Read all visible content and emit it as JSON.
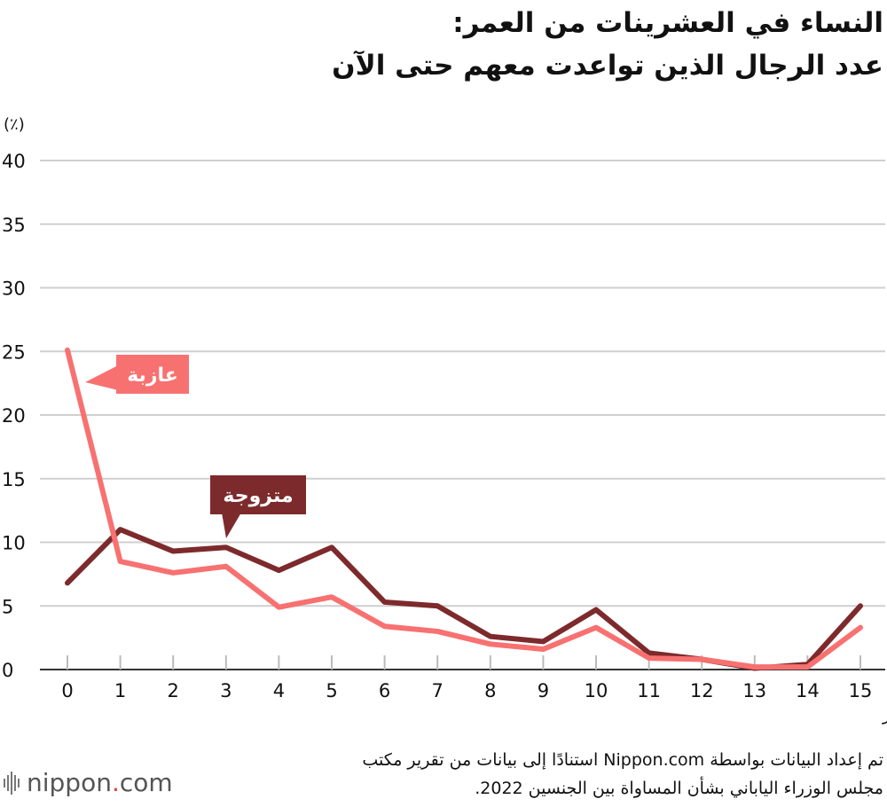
{
  "title": {
    "line1": "النساء في العشرينات من العمر:",
    "line2": "عدد الرجال الذين تواعدت معهم حتى الآن"
  },
  "footnote": {
    "line1": "تم إعداد البيانات بواسطة Nippon.com استنادًا إلى بيانات من تقرير مكتب",
    "line2": "مجلس الوزراء الياباني بشأن المساواة بين الجنسين 2022."
  },
  "logo": {
    "word": "nippon",
    "dot": ".",
    "suffix": "com"
  },
  "chart_data": {
    "type": "line",
    "unit_label": "(٪)",
    "x": [
      "0",
      "1",
      "2",
      "3",
      "4",
      "5",
      "6",
      "7",
      "8",
      "9",
      "10",
      "11",
      "12",
      "13",
      "14",
      "15"
    ],
    "x_last_note": "أو أكثر",
    "ylim": [
      0,
      40
    ],
    "yticks": [
      0,
      5,
      10,
      15,
      20,
      25,
      30,
      35,
      40
    ],
    "grid": true,
    "series": [
      {
        "name": "عازبة",
        "color": "#f87171",
        "values": [
          25.1,
          8.5,
          7.6,
          8.1,
          4.9,
          5.7,
          3.4,
          3.0,
          2.0,
          1.6,
          3.3,
          0.9,
          0.8,
          0.2,
          0.2,
          3.3
        ]
      },
      {
        "name": "متزوجة",
        "color": "#7d2a2c",
        "values": [
          6.8,
          11.0,
          9.3,
          9.6,
          7.8,
          9.6,
          5.3,
          5.0,
          2.6,
          2.2,
          4.7,
          1.3,
          0.8,
          0.1,
          0.4,
          5.0
        ]
      }
    ]
  }
}
